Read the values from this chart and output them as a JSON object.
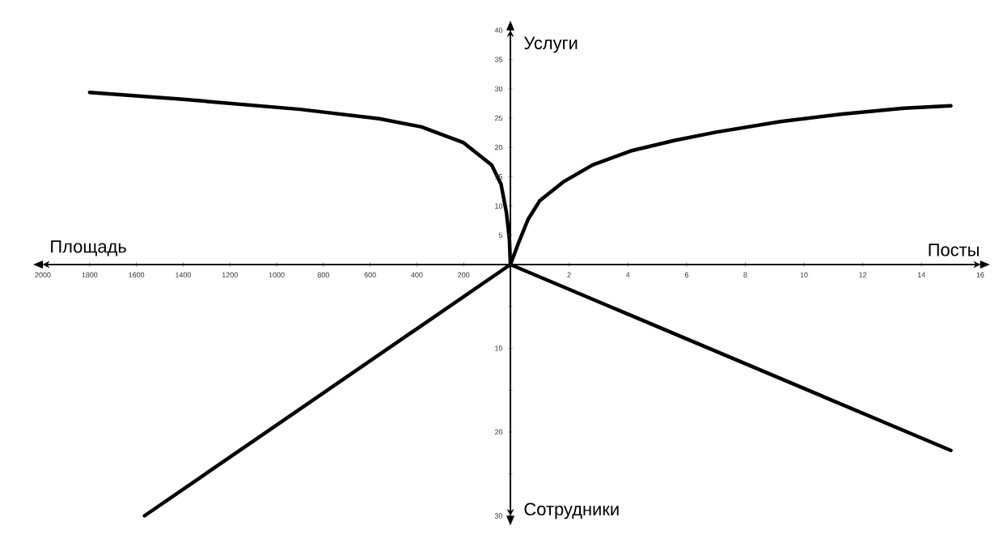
{
  "chart_data": [
    {
      "type": "line",
      "xlabel": "Площадь",
      "xlim": [
        2000,
        0
      ],
      "ylim": [
        0,
        40
      ],
      "xticks": [
        200,
        400,
        600,
        800,
        1000,
        1200,
        1400,
        1600,
        1800,
        2000
      ],
      "tick_labels": "x",
      "color": "#000000",
      "x": [
        0,
        4,
        17,
        40,
        80,
        200,
        380,
        560,
        900,
        1400,
        1800
      ],
      "values": [
        0,
        4.2,
        8.9,
        13.7,
        17,
        20.8,
        23.5,
        24.9,
        26.5,
        28.2,
        29.4
      ]
    },
    {
      "type": "line",
      "xlabel": "Посты",
      "ylabel": "Услуги",
      "xlim": [
        0,
        16
      ],
      "ylim": [
        0,
        40
      ],
      "xticks": [
        2,
        4,
        6,
        8,
        10,
        12,
        14,
        16
      ],
      "yticks": [
        5,
        10,
        15,
        20,
        25,
        30,
        35,
        40
      ],
      "color": "#000000",
      "x": [
        0,
        0.3,
        0.6,
        1,
        1.8,
        2.8,
        4.1,
        5.6,
        7,
        9.2,
        11.3,
        13.4,
        15
      ],
      "values": [
        0,
        4,
        7.7,
        10.9,
        14.1,
        17,
        19.4,
        21.2,
        22.6,
        24.4,
        25.7,
        26.7,
        27.1
      ]
    },
    {
      "type": "line",
      "xlim": [
        2000,
        0
      ],
      "ylim": [
        30,
        0
      ],
      "tick_labels": false,
      "color": "#000000",
      "x": [
        0,
        1565
      ],
      "values": [
        0,
        30
      ]
    },
    {
      "type": "line",
      "ylabel": "Сотрудники",
      "xlim": [
        0,
        16
      ],
      "ylim": [
        30,
        0
      ],
      "yticks": [
        {
          "value": 5,
          "label": null
        },
        10,
        {
          "value": 15,
          "label": null
        },
        20,
        {
          "value": 25,
          "label": null
        },
        30
      ],
      "tick_labels": "y",
      "color": "#000000",
      "x": [
        0,
        15
      ],
      "values": [
        0,
        22.2
      ]
    }
  ]
}
